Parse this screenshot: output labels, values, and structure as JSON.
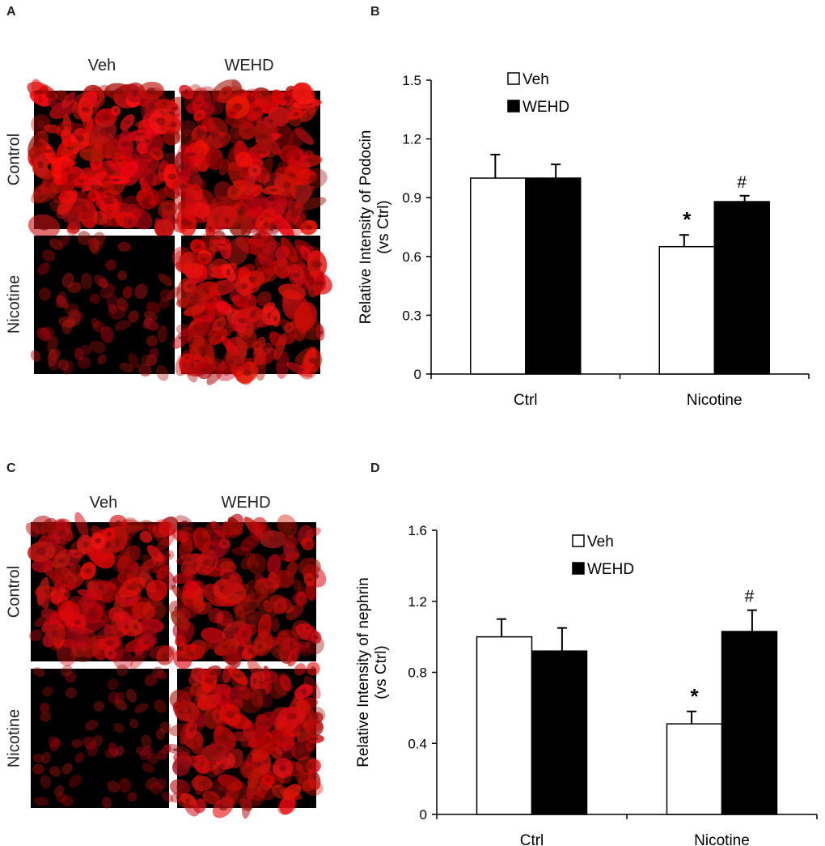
{
  "panels": {
    "A": {
      "letter": "A",
      "col_labels": [
        "Veh",
        "WEHD"
      ],
      "row_labels": [
        "Control",
        "Nicotine"
      ]
    },
    "C": {
      "letter": "C",
      "col_labels": [
        "Veh",
        "WEHD"
      ],
      "row_labels": [
        "Control",
        "Nicotine"
      ]
    }
  },
  "chart_data": [
    {
      "panel": "B",
      "type": "bar",
      "ylabel_line1": "Relative Intensity  of Podocin",
      "ylabel_line2": "(vs Ctrl)",
      "categories": [
        "Ctrl",
        "Nicotine"
      ],
      "series": [
        {
          "name": "Veh",
          "values": [
            1.0,
            0.65
          ],
          "errors": [
            0.12,
            0.06
          ],
          "fill": "#ffffff"
        },
        {
          "name": "WEHD",
          "values": [
            1.0,
            0.88
          ],
          "errors": [
            0.07,
            0.03
          ],
          "fill": "#000000"
        }
      ],
      "annotations": [
        {
          "category": 1,
          "series": 0,
          "text": "*"
        },
        {
          "category": 1,
          "series": 1,
          "text": "#"
        }
      ],
      "ylim": [
        0,
        1.5
      ],
      "yticks": [
        0,
        0.3,
        0.6,
        0.9,
        1.2,
        1.5
      ],
      "ytick_labels": [
        "0",
        "0.3",
        "0.6",
        "0.9",
        "1.2",
        "1.5"
      ],
      "legend_position": "top-center",
      "grid": false
    },
    {
      "panel": "D",
      "type": "bar",
      "ylabel_line1": "Relative Intensity of nephrin",
      "ylabel_line2": "(vs Ctrl)",
      "categories": [
        "Ctrl",
        "Nicotine"
      ],
      "series": [
        {
          "name": "Veh",
          "values": [
            1.0,
            0.51
          ],
          "errors": [
            0.1,
            0.07
          ],
          "fill": "#ffffff"
        },
        {
          "name": "WEHD",
          "values": [
            0.92,
            1.03
          ],
          "errors": [
            0.13,
            0.12
          ],
          "fill": "#000000"
        }
      ],
      "annotations": [
        {
          "category": 1,
          "series": 0,
          "text": "*"
        },
        {
          "category": 1,
          "series": 1,
          "text": "#"
        }
      ],
      "ylim": [
        0,
        1.6
      ],
      "yticks": [
        0,
        0.4,
        0.8,
        1.2,
        1.6
      ],
      "ytick_labels": [
        "0",
        "0.4",
        "0.8",
        "1.2",
        "1.6"
      ],
      "legend_position": "top-center",
      "grid": false
    }
  ]
}
